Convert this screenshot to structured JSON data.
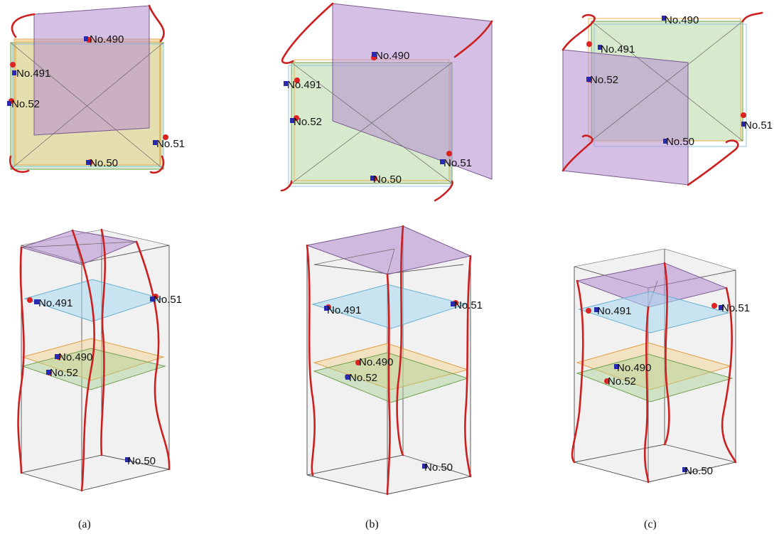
{
  "nodes": {
    "n490": "No.490",
    "n491": "No.491",
    "n52": "No.52",
    "n51": "No.51",
    "n50": "No.50"
  },
  "captions": {
    "a": "(a)",
    "b": "(b)",
    "c": "(c)"
  },
  "colors": {
    "curve": "#cc2020",
    "top_face": "#b48ad0",
    "floor_blue": "#a8d8f0",
    "floor_orange": "#f6d08a",
    "floor_green": "#a8d090",
    "marker_red": "#dd2222",
    "marker_blue": "#2a2ab0"
  }
}
